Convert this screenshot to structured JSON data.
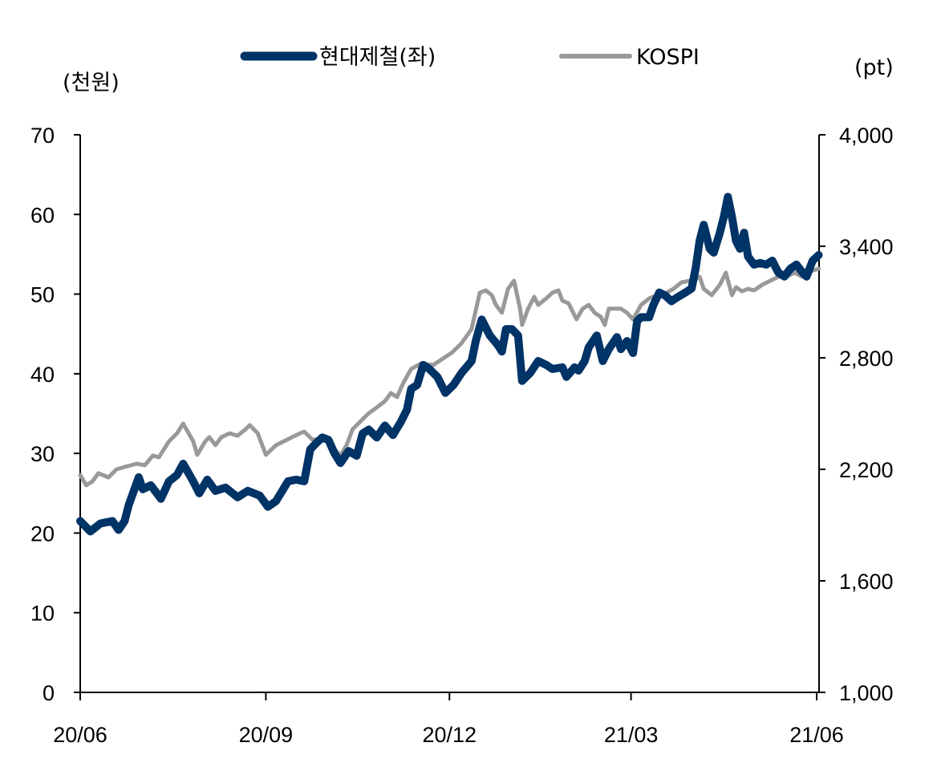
{
  "chart_data": {
    "type": "line",
    "title": "",
    "xlabel": "",
    "ylabel_left": "(천원)",
    "ylabel_right": "(pt)",
    "legend_position": "top",
    "grid": false,
    "x_ticks": [
      "20/06",
      "20/09",
      "20/12",
      "21/03",
      "21/06"
    ],
    "x_tick_dates": [
      "2020-06-01",
      "2020-09-01",
      "2020-12-01",
      "2021-03-01",
      "2021-06-01"
    ],
    "x_range": [
      "2020-06-01",
      "2021-06-01"
    ],
    "y_left": {
      "range": [
        0,
        70
      ],
      "ticks": [
        "0",
        "10",
        "20",
        "30",
        "40",
        "50",
        "60",
        "70"
      ]
    },
    "y_right": {
      "range": [
        1000,
        4000
      ],
      "ticks": [
        "1,000",
        "1,600",
        "2,200",
        "2,800",
        "3,400",
        "4,000"
      ]
    },
    "series": [
      {
        "name": "현대제철(좌)",
        "axis": "left",
        "color": "#003366",
        "points": [
          [
            "2020-06-01",
            21.5
          ],
          [
            "2020-06-06",
            20.2
          ],
          [
            "2020-06-11",
            21.2
          ],
          [
            "2020-06-17",
            21.5
          ],
          [
            "2020-06-20",
            20.4
          ],
          [
            "2020-06-23",
            21.5
          ],
          [
            "2020-06-25",
            23.5
          ],
          [
            "2020-06-30",
            27.0
          ],
          [
            "2020-07-02",
            25.5
          ],
          [
            "2020-07-06",
            26.0
          ],
          [
            "2020-07-11",
            24.3
          ],
          [
            "2020-07-15",
            26.5
          ],
          [
            "2020-07-19",
            27.3
          ],
          [
            "2020-07-22",
            28.7
          ],
          [
            "2020-07-27",
            26.5
          ],
          [
            "2020-07-30",
            25.0
          ],
          [
            "2020-08-03",
            26.7
          ],
          [
            "2020-08-07",
            25.3
          ],
          [
            "2020-08-12",
            25.7
          ],
          [
            "2020-08-18",
            24.5
          ],
          [
            "2020-08-23",
            25.3
          ],
          [
            "2020-08-29",
            24.7
          ],
          [
            "2020-09-02",
            23.3
          ],
          [
            "2020-09-06",
            24.0
          ],
          [
            "2020-09-12",
            26.5
          ],
          [
            "2020-09-16",
            26.7
          ],
          [
            "2020-09-20",
            26.5
          ],
          [
            "2020-09-23",
            30.5
          ],
          [
            "2020-09-26",
            31.3
          ],
          [
            "2020-09-29",
            32.0
          ],
          [
            "2020-10-02",
            31.7
          ],
          [
            "2020-10-05",
            30.0
          ],
          [
            "2020-10-08",
            28.8
          ],
          [
            "2020-10-12",
            30.3
          ],
          [
            "2020-10-16",
            29.7
          ],
          [
            "2020-10-19",
            32.5
          ],
          [
            "2020-10-22",
            33.0
          ],
          [
            "2020-10-26",
            32.0
          ],
          [
            "2020-10-30",
            33.5
          ],
          [
            "2020-11-03",
            32.3
          ],
          [
            "2020-11-07",
            34.0
          ],
          [
            "2020-11-10",
            35.5
          ],
          [
            "2020-11-12",
            38.1
          ],
          [
            "2020-11-15",
            38.6
          ],
          [
            "2020-11-18",
            41.1
          ],
          [
            "2020-11-21",
            40.6
          ],
          [
            "2020-11-25",
            39.6
          ],
          [
            "2020-11-29",
            37.6
          ],
          [
            "2020-12-03",
            38.6
          ],
          [
            "2020-12-07",
            40.1
          ],
          [
            "2020-12-12",
            41.6
          ],
          [
            "2020-12-14",
            44.1
          ],
          [
            "2020-12-17",
            46.8
          ],
          [
            "2020-12-21",
            44.8
          ],
          [
            "2020-12-25",
            43.6
          ],
          [
            "2020-12-27",
            42.8
          ],
          [
            "2020-12-29",
            45.6
          ],
          [
            "2021-01-01",
            45.6
          ],
          [
            "2021-01-04",
            44.8
          ],
          [
            "2021-01-06",
            39.1
          ],
          [
            "2021-01-10",
            40.1
          ],
          [
            "2021-01-14",
            41.6
          ],
          [
            "2021-01-18",
            41.1
          ],
          [
            "2021-01-21",
            40.6
          ],
          [
            "2021-01-26",
            40.8
          ],
          [
            "2021-01-28",
            39.6
          ],
          [
            "2021-02-01",
            40.8
          ],
          [
            "2021-02-03",
            40.4
          ],
          [
            "2021-02-06",
            41.6
          ],
          [
            "2021-02-08",
            43.3
          ],
          [
            "2021-02-12",
            44.8
          ],
          [
            "2021-02-15",
            41.6
          ],
          [
            "2021-02-18",
            43.1
          ],
          [
            "2021-02-22",
            44.6
          ],
          [
            "2021-02-24",
            43.1
          ],
          [
            "2021-02-27",
            44.1
          ],
          [
            "2021-03-02",
            42.6
          ],
          [
            "2021-03-04",
            46.6
          ],
          [
            "2021-03-06",
            47.1
          ],
          [
            "2021-03-10",
            47.1
          ],
          [
            "2021-03-12",
            48.6
          ],
          [
            "2021-03-15",
            50.2
          ],
          [
            "2021-03-18",
            49.8
          ],
          [
            "2021-03-21",
            49.1
          ],
          [
            "2021-03-24",
            49.6
          ],
          [
            "2021-03-28",
            50.2
          ],
          [
            "2021-03-31",
            50.7
          ],
          [
            "2021-04-02",
            53.2
          ],
          [
            "2021-04-04",
            56.7
          ],
          [
            "2021-04-06",
            58.7
          ],
          [
            "2021-04-09",
            55.7
          ],
          [
            "2021-04-11",
            55.2
          ],
          [
            "2021-04-14",
            57.7
          ],
          [
            "2021-04-16",
            59.7
          ],
          [
            "2021-04-18",
            62.2
          ],
          [
            "2021-04-20",
            59.7
          ],
          [
            "2021-04-22",
            56.7
          ],
          [
            "2021-04-24",
            55.7
          ],
          [
            "2021-04-26",
            57.7
          ],
          [
            "2021-04-28",
            54.7
          ],
          [
            "2021-05-01",
            53.7
          ],
          [
            "2021-05-04",
            53.9
          ],
          [
            "2021-05-07",
            53.7
          ],
          [
            "2021-05-10",
            54.2
          ],
          [
            "2021-05-13",
            52.7
          ],
          [
            "2021-05-16",
            52.2
          ],
          [
            "2021-05-19",
            53.2
          ],
          [
            "2021-05-22",
            53.7
          ],
          [
            "2021-05-25",
            52.7
          ],
          [
            "2021-05-27",
            52.2
          ],
          [
            "2021-05-30",
            54.2
          ],
          [
            "2021-06-02",
            54.9
          ]
        ]
      },
      {
        "name": "KOSPI",
        "axis": "right",
        "color": "#999999",
        "points": [
          [
            "2020-06-01",
            2170
          ],
          [
            "2020-06-04",
            2114
          ],
          [
            "2020-06-07",
            2135
          ],
          [
            "2020-06-10",
            2179
          ],
          [
            "2020-06-15",
            2157
          ],
          [
            "2020-06-19",
            2200
          ],
          [
            "2020-06-23",
            2213
          ],
          [
            "2020-06-29",
            2230
          ],
          [
            "2020-07-03",
            2222
          ],
          [
            "2020-07-07",
            2274
          ],
          [
            "2020-07-10",
            2265
          ],
          [
            "2020-07-15",
            2351
          ],
          [
            "2020-07-19",
            2394
          ],
          [
            "2020-07-22",
            2446
          ],
          [
            "2020-07-27",
            2351
          ],
          [
            "2020-07-29",
            2278
          ],
          [
            "2020-08-02",
            2351
          ],
          [
            "2020-08-04",
            2373
          ],
          [
            "2020-08-07",
            2330
          ],
          [
            "2020-08-10",
            2373
          ],
          [
            "2020-08-14",
            2394
          ],
          [
            "2020-08-18",
            2381
          ],
          [
            "2020-08-22",
            2416
          ],
          [
            "2020-08-24",
            2438
          ],
          [
            "2020-08-28",
            2394
          ],
          [
            "2020-09-01",
            2278
          ],
          [
            "2020-09-06",
            2330
          ],
          [
            "2020-09-10",
            2351
          ],
          [
            "2020-09-14",
            2373
          ],
          [
            "2020-09-18",
            2394
          ],
          [
            "2020-09-20",
            2403
          ],
          [
            "2020-09-24",
            2360
          ],
          [
            "2020-09-28",
            2360
          ],
          [
            "2020-10-02",
            2351
          ],
          [
            "2020-10-05",
            2308
          ],
          [
            "2020-10-08",
            2274
          ],
          [
            "2020-10-11",
            2330
          ],
          [
            "2020-10-14",
            2416
          ],
          [
            "2020-10-18",
            2459
          ],
          [
            "2020-10-22",
            2502
          ],
          [
            "2020-10-26",
            2533
          ],
          [
            "2020-10-30",
            2567
          ],
          [
            "2020-11-02",
            2610
          ],
          [
            "2020-11-05",
            2589
          ],
          [
            "2020-11-08",
            2662
          ],
          [
            "2020-11-12",
            2740
          ],
          [
            "2020-11-17",
            2770
          ],
          [
            "2020-11-23",
            2761
          ],
          [
            "2020-11-29",
            2805
          ],
          [
            "2020-12-02",
            2826
          ],
          [
            "2020-12-07",
            2878
          ],
          [
            "2020-12-12",
            2956
          ],
          [
            "2020-12-16",
            3150
          ],
          [
            "2020-12-19",
            3163
          ],
          [
            "2020-12-22",
            3137
          ],
          [
            "2020-12-24",
            3085
          ],
          [
            "2020-12-27",
            3042
          ],
          [
            "2020-12-30",
            3171
          ],
          [
            "2021-01-02",
            3215
          ],
          [
            "2021-01-05",
            3064
          ],
          [
            "2021-01-06",
            2977
          ],
          [
            "2021-01-09",
            3064
          ],
          [
            "2021-01-12",
            3128
          ],
          [
            "2021-01-14",
            3085
          ],
          [
            "2021-01-18",
            3120
          ],
          [
            "2021-01-21",
            3150
          ],
          [
            "2021-01-24",
            3163
          ],
          [
            "2021-01-26",
            3107
          ],
          [
            "2021-01-29",
            3094
          ],
          [
            "2021-02-02",
            3007
          ],
          [
            "2021-02-05",
            3064
          ],
          [
            "2021-02-08",
            3085
          ],
          [
            "2021-02-11",
            3042
          ],
          [
            "2021-02-14",
            3020
          ],
          [
            "2021-02-16",
            2977
          ],
          [
            "2021-02-18",
            3064
          ],
          [
            "2021-02-22",
            3064
          ],
          [
            "2021-02-24",
            3064
          ],
          [
            "2021-02-27",
            3042
          ],
          [
            "2021-03-02",
            3007
          ],
          [
            "2021-03-06",
            3085
          ],
          [
            "2021-03-10",
            3120
          ],
          [
            "2021-03-14",
            3137
          ],
          [
            "2021-03-18",
            3146
          ],
          [
            "2021-03-22",
            3171
          ],
          [
            "2021-03-26",
            3206
          ],
          [
            "2021-03-30",
            3215
          ],
          [
            "2021-04-02",
            3223
          ],
          [
            "2021-04-04",
            3236
          ],
          [
            "2021-04-06",
            3171
          ],
          [
            "2021-04-10",
            3137
          ],
          [
            "2021-04-14",
            3193
          ],
          [
            "2021-04-17",
            3258
          ],
          [
            "2021-04-20",
            3137
          ],
          [
            "2021-04-22",
            3180
          ],
          [
            "2021-04-25",
            3158
          ],
          [
            "2021-04-28",
            3171
          ],
          [
            "2021-05-01",
            3163
          ],
          [
            "2021-05-05",
            3193
          ],
          [
            "2021-05-09",
            3215
          ],
          [
            "2021-05-13",
            3236
          ],
          [
            "2021-05-17",
            3236
          ],
          [
            "2021-05-21",
            3258
          ],
          [
            "2021-05-25",
            3236
          ],
          [
            "2021-05-29",
            3266
          ],
          [
            "2021-06-02",
            3279
          ]
        ]
      }
    ]
  }
}
